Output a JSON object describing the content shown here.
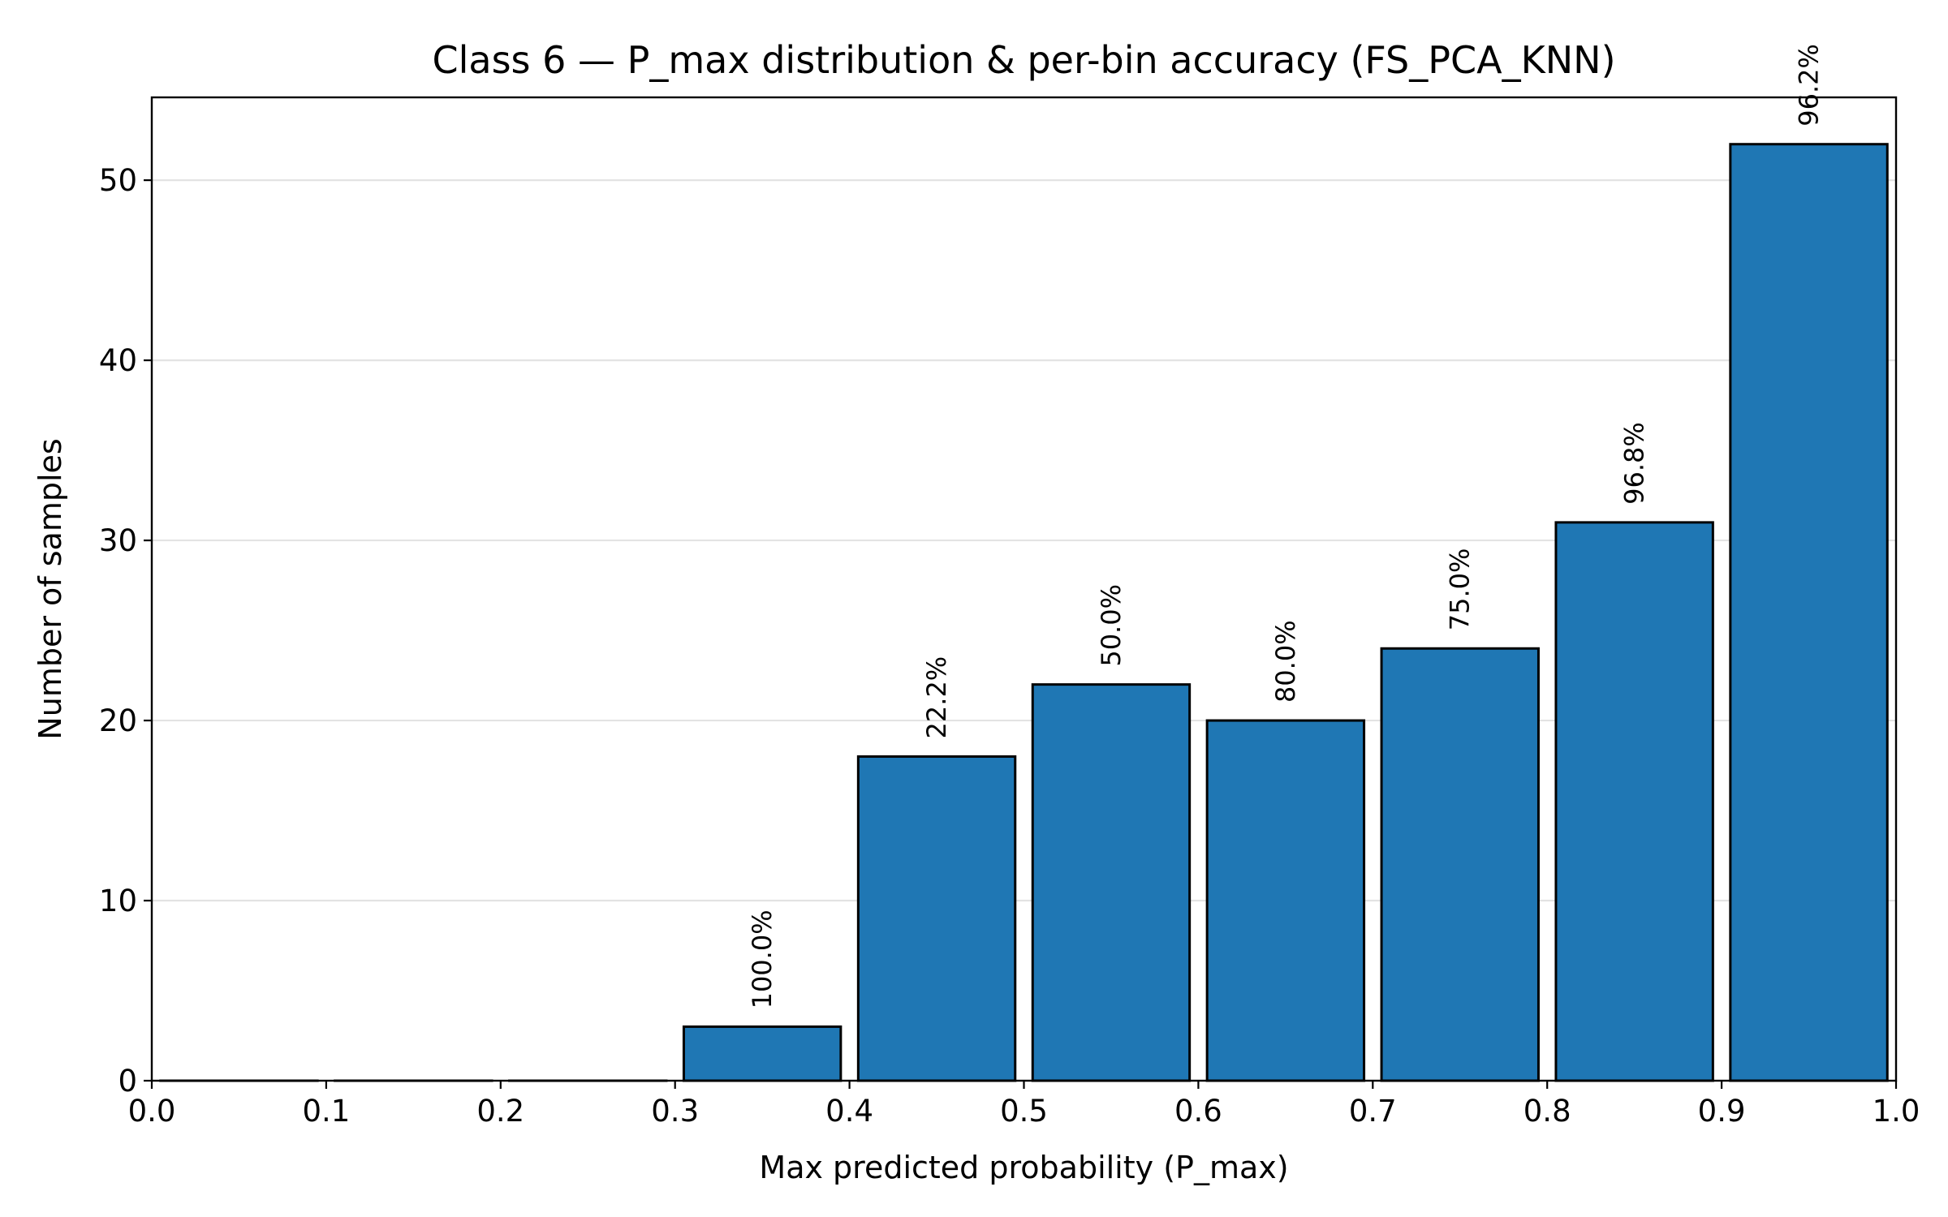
{
  "chart_data": {
    "type": "bar",
    "title": "Class 6 — P_max distribution & per-bin accuracy (FS_PCA_KNN)",
    "xlabel": "Max predicted probability (P_max)",
    "ylabel": "Number of samples",
    "xlim": [
      0.0,
      1.0
    ],
    "ylim": [
      0,
      54.6
    ],
    "xticks": [
      "0.0",
      "0.1",
      "0.2",
      "0.3",
      "0.4",
      "0.5",
      "0.6",
      "0.7",
      "0.8",
      "0.9",
      "1.0"
    ],
    "yticks": [
      "0",
      "10",
      "20",
      "30",
      "40",
      "50"
    ],
    "grid": "horizontal",
    "bar_color": "#1f77b4",
    "bins": [
      {
        "start": 0.0,
        "end": 0.1,
        "count": 0,
        "label": ""
      },
      {
        "start": 0.1,
        "end": 0.2,
        "count": 0,
        "label": ""
      },
      {
        "start": 0.2,
        "end": 0.3,
        "count": 0,
        "label": ""
      },
      {
        "start": 0.3,
        "end": 0.4,
        "count": 3,
        "label": "100.0%"
      },
      {
        "start": 0.4,
        "end": 0.5,
        "count": 18,
        "label": "22.2%"
      },
      {
        "start": 0.5,
        "end": 0.6,
        "count": 22,
        "label": "50.0%"
      },
      {
        "start": 0.6,
        "end": 0.7,
        "count": 20,
        "label": "80.0%"
      },
      {
        "start": 0.7,
        "end": 0.8,
        "count": 24,
        "label": "75.0%"
      },
      {
        "start": 0.8,
        "end": 0.9,
        "count": 31,
        "label": "96.8%"
      },
      {
        "start": 0.9,
        "end": 1.0,
        "count": 52,
        "label": "96.2%"
      }
    ]
  }
}
